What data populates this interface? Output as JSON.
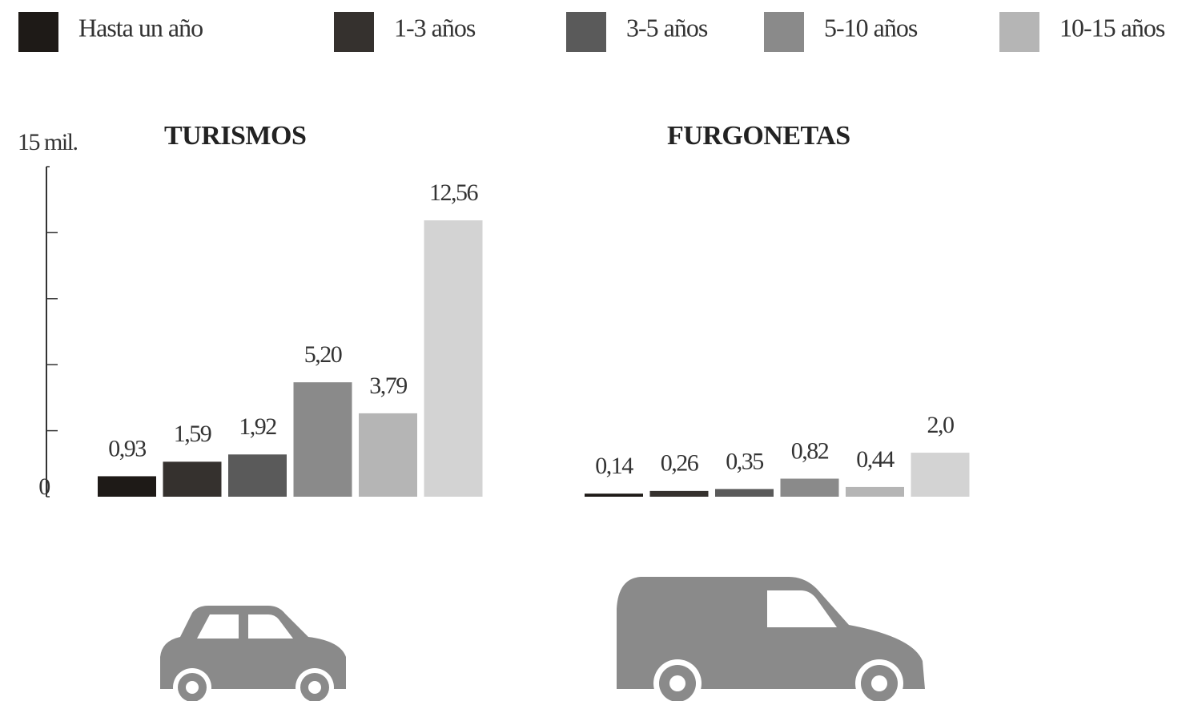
{
  "legend": {
    "items": [
      {
        "label": "Hasta un año",
        "color": "#1e1a17"
      },
      {
        "label": "1-3 años",
        "color": "#35312e"
      },
      {
        "label": "3-5 años",
        "color": "#5a5a5a"
      },
      {
        "label": "5-10 años",
        "color": "#8a8a8a"
      },
      {
        "label": "10-15 años",
        "color": "#b5b5b5"
      }
    ]
  },
  "chart_data": [
    {
      "type": "bar",
      "title": "TURISMOS",
      "values": [
        0.93,
        1.59,
        1.92,
        5.2,
        3.79,
        12.56
      ],
      "value_labels": [
        "0,93",
        "1,59",
        "1,92",
        "5,20",
        "3,79",
        "12,56"
      ],
      "colors": [
        "#1e1a17",
        "#35312e",
        "#5a5a5a",
        "#8a8a8a",
        "#b5b5b5",
        "#d3d3d3"
      ],
      "ylim": [
        0,
        15
      ],
      "yticks": [
        0,
        {
          "value": 15,
          "label": "15 mil."
        }
      ],
      "minor_yticks": [
        3,
        6,
        9,
        12
      ]
    },
    {
      "type": "bar",
      "title": "FURGONETAS",
      "values": [
        0.14,
        0.26,
        0.35,
        0.82,
        0.44,
        2.0
      ],
      "value_labels": [
        "0,14",
        "0,26",
        "0,35",
        "0,82",
        "0,44",
        "2,0"
      ],
      "colors": [
        "#1e1a17",
        "#35312e",
        "#5a5a5a",
        "#8a8a8a",
        "#b5b5b5",
        "#d3d3d3"
      ],
      "ylim": [
        0,
        15
      ]
    }
  ]
}
